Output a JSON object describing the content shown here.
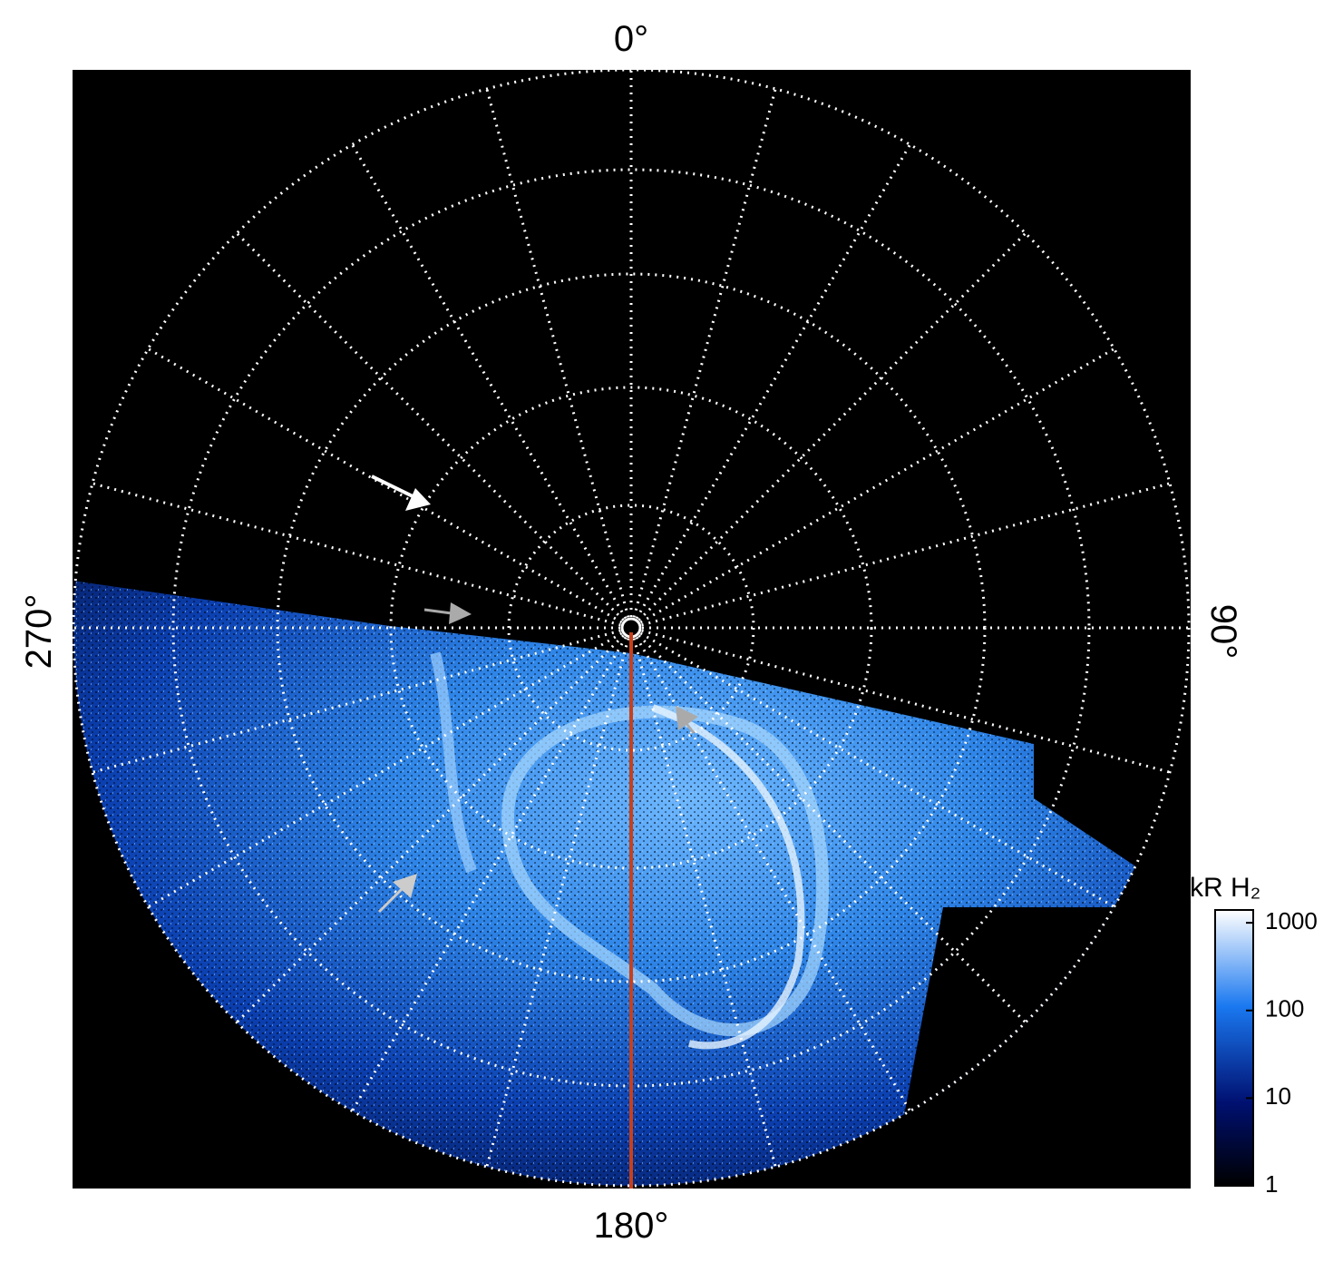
{
  "chart_data": {
    "type": "polar-image",
    "angle_labels": {
      "top": "0°",
      "right": "90°",
      "bottom": "180°",
      "left": "270°"
    },
    "colorbar": {
      "title": "kR H₂",
      "ylim": [
        1,
        1400
      ],
      "yticks": [
        1,
        10,
        100,
        1000
      ],
      "log": true
    }
  }
}
